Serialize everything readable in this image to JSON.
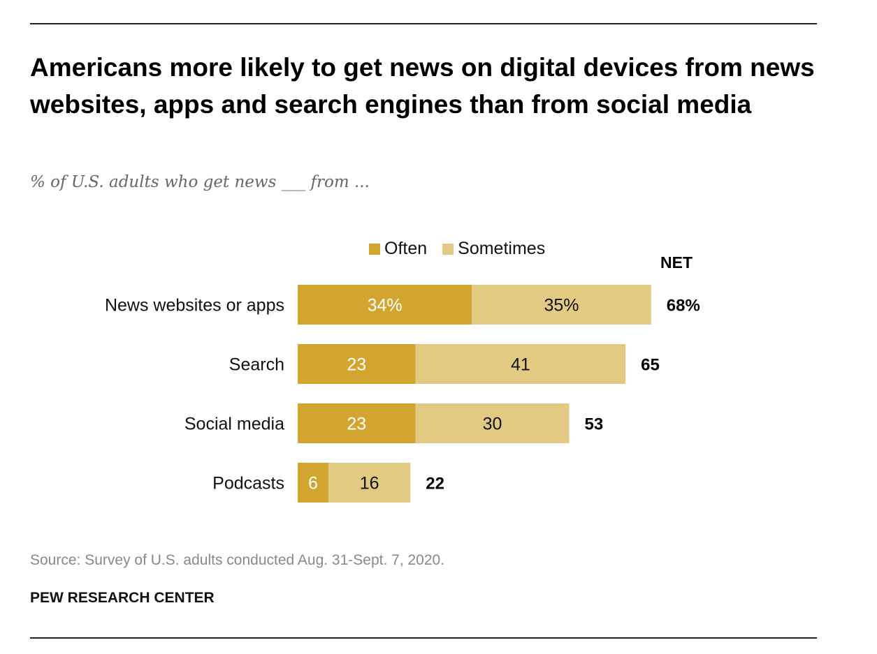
{
  "title": "Americans more likely to get news on digital devices from news websites, apps and search engines than from social media",
  "subtitle": "% of U.S. adults who get news ___ from ...",
  "source": "Source: Survey of U.S. adults conducted Aug. 31-Sept. 7, 2020.",
  "brand": "PEW RESEARCH CENTER",
  "colors": {
    "often": "#D2A52F",
    "sometimes": "#E3CA83"
  },
  "chart_data": {
    "type": "bar",
    "orientation": "horizontal",
    "stacked": true,
    "categories": [
      "News websites or apps",
      "Search",
      "Social media",
      "Podcasts"
    ],
    "series": [
      {
        "name": "Often",
        "values": [
          34,
          23,
          23,
          6
        ],
        "labels": [
          "34%",
          "23",
          "23",
          "6"
        ]
      },
      {
        "name": "Sometimes",
        "values": [
          35,
          41,
          30,
          16
        ],
        "labels": [
          "35%",
          "41",
          "30",
          "16"
        ]
      }
    ],
    "net_header": "NET",
    "net": [
      "68%",
      "65",
      "53",
      "22"
    ],
    "legend": "top"
  }
}
